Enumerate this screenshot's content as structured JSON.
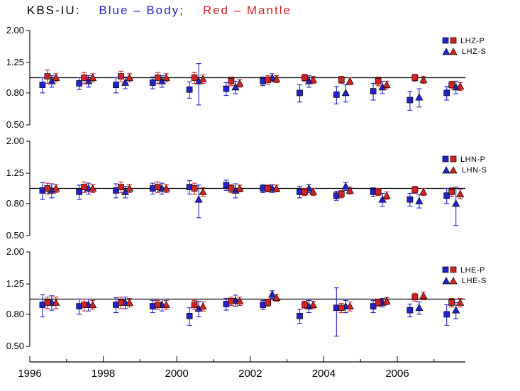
{
  "title": {
    "station": "KBS-IU:",
    "body": "Blue – Body;",
    "mantle": "Red – Mantle"
  },
  "colors": {
    "blue": "#2222cc",
    "red": "#d42222",
    "axis": "#000000"
  },
  "axes": {
    "y_tick_labels": [
      "2.00",
      "1.25",
      "0.80",
      "0.50"
    ],
    "y_tick_values": [
      2.0,
      1.25,
      0.8,
      0.5
    ],
    "x_tick_labels": [
      "1996",
      "1998",
      "2000",
      "2002",
      "2004",
      "2006"
    ],
    "x_tick_values": [
      1996,
      1998,
      2000,
      2002,
      2004,
      2006
    ],
    "x_minor_step": 1,
    "x_range": [
      1996,
      2007.9
    ],
    "y_range": [
      0.5,
      2.0
    ],
    "y_scale": "log",
    "reference_value": 1.0,
    "grid": "off"
  },
  "chart_data": [
    {
      "type": "scatter",
      "panel": "LHZ",
      "legend": {
        "p_label": "LHZ-P",
        "s_label": "LHZ-S"
      },
      "x": [
        1996.5,
        1997.5,
        1998.5,
        1999.5,
        2000.5,
        2001.5,
        2002.5,
        2003.5,
        2004.5,
        2005.5,
        2006.5,
        2007.5
      ],
      "series": [
        {
          "name": "P body",
          "color": "blue",
          "marker": "square",
          "values": [
            0.9,
            0.92,
            0.9,
            0.93,
            0.84,
            0.85,
            0.95,
            0.8,
            0.78,
            0.82,
            0.72,
            0.8
          ],
          "errors": [
            0.1,
            0.08,
            0.1,
            0.08,
            0.1,
            0.08,
            0.06,
            0.1,
            0.1,
            0.1,
            0.1,
            0.08
          ]
        },
        {
          "name": "S body",
          "color": "blue",
          "marker": "triangle",
          "values": [
            0.95,
            0.95,
            0.93,
            0.95,
            0.95,
            0.87,
            1.0,
            0.95,
            0.8,
            0.87,
            0.75,
            0.87
          ],
          "errors": [
            0.08,
            0.08,
            0.08,
            0.08,
            0.28,
            0.08,
            0.06,
            0.08,
            0.1,
            0.08,
            0.1,
            0.08
          ]
        },
        {
          "name": "P mantle",
          "color": "red",
          "marker": "square",
          "values": [
            1.02,
            1.0,
            1.02,
            1.0,
            1.0,
            0.95,
            0.97,
            1.0,
            0.97,
            0.95,
            1.0,
            0.9
          ],
          "errors": [
            0.1,
            0.08,
            0.08,
            0.08,
            0.08,
            0.06,
            0.06,
            0.05,
            0.05,
            0.06,
            0.05,
            0.05
          ]
        },
        {
          "name": "S mantle",
          "color": "red",
          "marker": "triangle",
          "values": [
            1.0,
            1.0,
            1.0,
            1.0,
            0.98,
            0.92,
            0.98,
            0.97,
            0.95,
            0.9,
            0.97,
            0.88
          ],
          "errors": [
            0.06,
            0.06,
            0.06,
            0.06,
            0.06,
            0.05,
            0.05,
            0.05,
            0.05,
            0.05,
            0.05,
            0.05
          ]
        }
      ]
    },
    {
      "type": "scatter",
      "panel": "LHN",
      "legend": {
        "p_label": "LHN-P",
        "s_label": "LHN-S"
      },
      "x": [
        1996.5,
        1997.5,
        1998.5,
        1999.5,
        2000.5,
        2001.5,
        2002.5,
        2003.5,
        2004.5,
        2005.5,
        2006.5,
        2007.5
      ],
      "series": [
        {
          "name": "P body",
          "color": "blue",
          "marker": "square",
          "values": [
            0.97,
            0.95,
            0.97,
            1.0,
            1.02,
            1.05,
            1.0,
            0.95,
            0.9,
            0.95,
            0.85,
            0.9
          ],
          "errors": [
            0.12,
            0.1,
            0.1,
            0.08,
            0.1,
            0.08,
            0.06,
            0.08,
            0.06,
            0.06,
            0.08,
            0.1
          ]
        },
        {
          "name": "S body",
          "color": "blue",
          "marker": "triangle",
          "values": [
            0.97,
            1.0,
            0.95,
            1.0,
            0.85,
            0.97,
            1.0,
            1.0,
            1.03,
            0.85,
            0.83,
            0.8
          ],
          "errors": [
            0.1,
            0.08,
            0.08,
            0.08,
            0.2,
            0.1,
            0.06,
            0.06,
            0.06,
            0.08,
            0.08,
            0.22
          ]
        },
        {
          "name": "P mantle",
          "color": "red",
          "marker": "square",
          "values": [
            1.0,
            1.02,
            1.02,
            1.02,
            1.0,
            1.0,
            1.0,
            0.95,
            0.92,
            0.95,
            0.98,
            0.95
          ],
          "errors": [
            0.08,
            0.08,
            0.08,
            0.08,
            0.08,
            0.06,
            0.05,
            0.05,
            0.05,
            0.05,
            0.05,
            0.06
          ]
        },
        {
          "name": "S mantle",
          "color": "red",
          "marker": "triangle",
          "values": [
            1.0,
            1.0,
            1.0,
            1.0,
            0.95,
            1.0,
            1.0,
            0.95,
            0.97,
            0.9,
            0.95,
            0.92
          ],
          "errors": [
            0.06,
            0.06,
            0.06,
            0.06,
            0.06,
            0.05,
            0.05,
            0.05,
            0.05,
            0.05,
            0.05,
            0.06
          ]
        }
      ]
    },
    {
      "type": "scatter",
      "panel": "LHE",
      "legend": {
        "p_label": "LHE-P",
        "s_label": "LHE-S"
      },
      "x": [
        1996.5,
        1997.5,
        1998.5,
        1999.5,
        2000.5,
        2001.5,
        2002.5,
        2003.5,
        2004.5,
        2005.5,
        2006.5,
        2007.5
      ],
      "series": [
        {
          "name": "P body",
          "color": "blue",
          "marker": "square",
          "values": [
            0.92,
            0.9,
            0.92,
            0.9,
            0.78,
            0.93,
            0.92,
            0.78,
            0.88,
            0.9,
            0.85,
            0.8
          ],
          "errors": [
            0.15,
            0.1,
            0.1,
            0.08,
            0.1,
            0.08,
            0.06,
            0.08,
            0.3,
            0.08,
            0.08,
            0.12
          ]
        },
        {
          "name": "S body",
          "color": "blue",
          "marker": "triangle",
          "values": [
            0.95,
            0.92,
            0.95,
            0.92,
            0.87,
            0.98,
            1.07,
            0.9,
            0.9,
            0.95,
            0.88,
            0.85
          ],
          "errors": [
            0.1,
            0.08,
            0.08,
            0.08,
            0.1,
            0.08,
            0.06,
            0.08,
            0.08,
            0.06,
            0.08,
            0.1
          ]
        },
        {
          "name": "P mantle",
          "color": "red",
          "marker": "square",
          "values": [
            0.95,
            0.92,
            0.95,
            0.92,
            0.92,
            0.97,
            0.95,
            0.92,
            0.88,
            0.95,
            1.03,
            0.95
          ],
          "errors": [
            0.08,
            0.08,
            0.08,
            0.06,
            0.06,
            0.06,
            0.05,
            0.05,
            0.06,
            0.05,
            0.06,
            0.06
          ]
        },
        {
          "name": "S mantle",
          "color": "red",
          "marker": "triangle",
          "values": [
            0.95,
            0.92,
            0.95,
            0.92,
            0.9,
            0.97,
            1.02,
            0.92,
            0.9,
            0.97,
            1.05,
            0.95
          ],
          "errors": [
            0.08,
            0.06,
            0.06,
            0.06,
            0.06,
            0.06,
            0.05,
            0.05,
            0.06,
            0.05,
            0.06,
            0.06
          ]
        }
      ]
    }
  ]
}
